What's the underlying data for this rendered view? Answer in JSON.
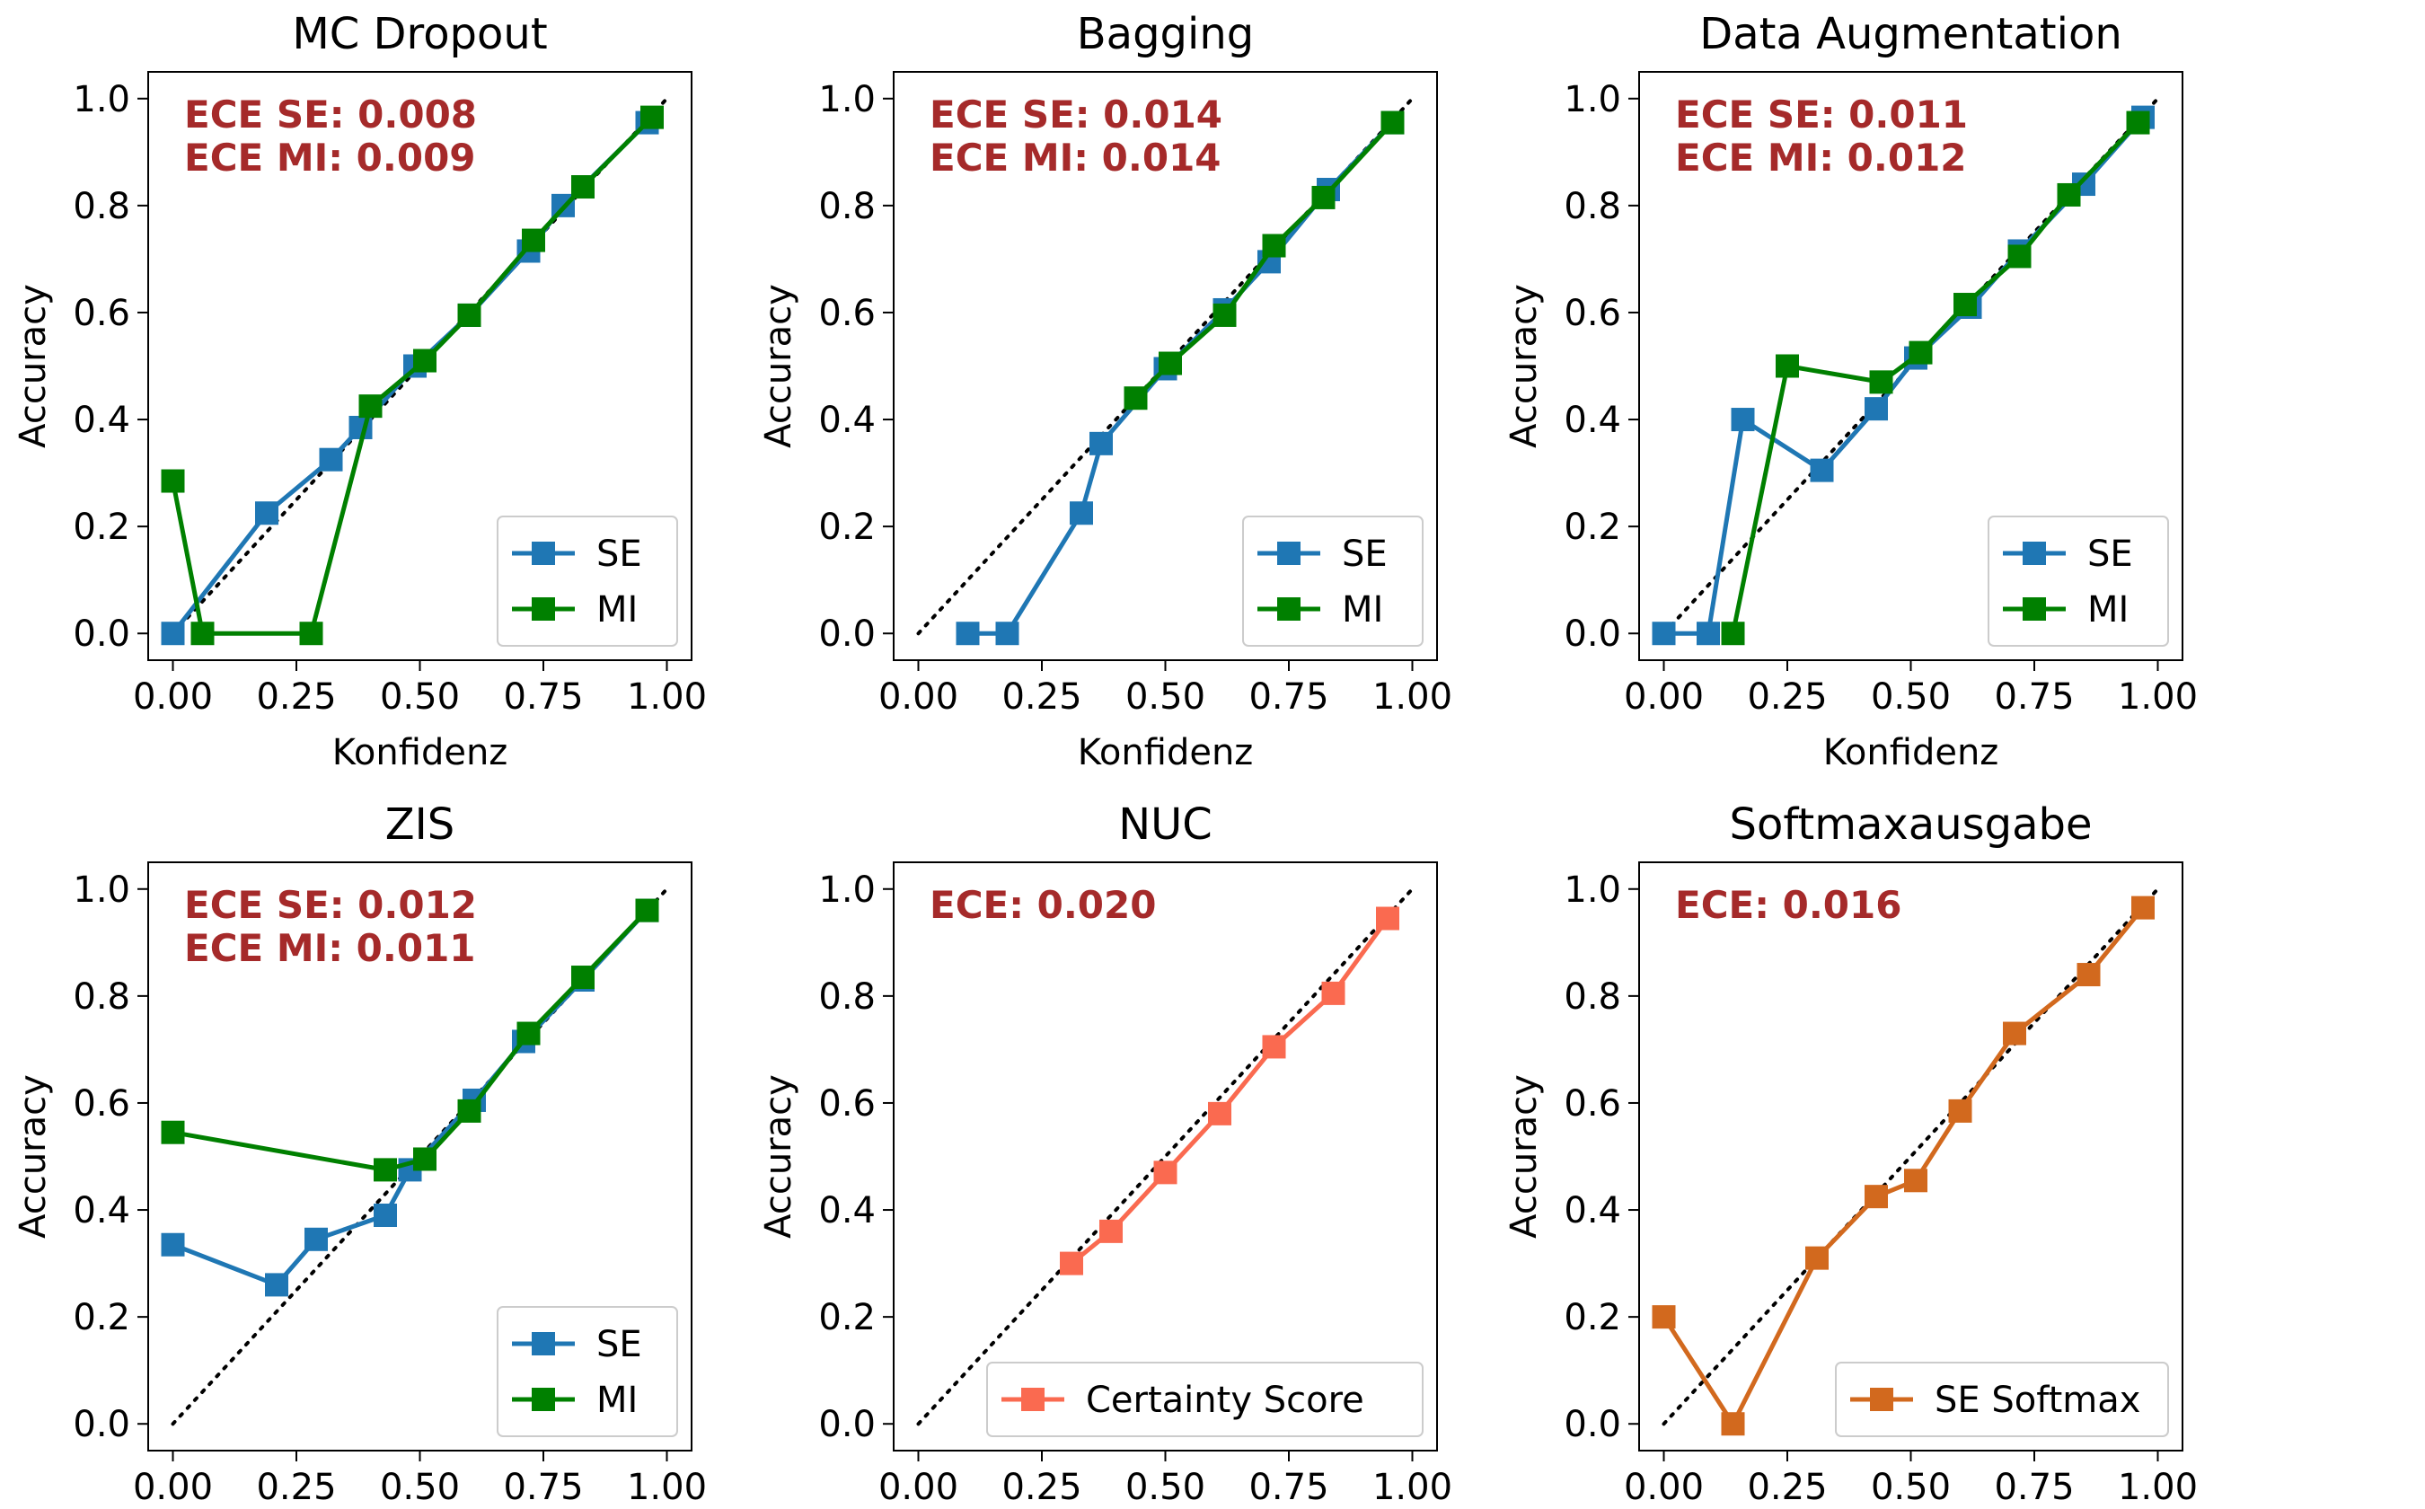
{
  "chart_data": [
    {
      "type": "line",
      "title": "MC Dropout",
      "xlabel": "Konfidenz",
      "ylabel": "Accuracy",
      "xlim": [
        -0.05,
        1.05
      ],
      "ylim": [
        -0.05,
        1.05
      ],
      "xticks": [
        "0.00",
        "0.25",
        "0.50",
        "0.75",
        "1.00"
      ],
      "yticks": [
        "0.0",
        "0.2",
        "0.4",
        "0.6",
        "0.8",
        "1.0"
      ],
      "annotations": [
        "ECE SE: 0.008",
        "ECE MI: 0.009"
      ],
      "legend_position": "lower-right",
      "diagonal": true,
      "series": [
        {
          "name": "SE",
          "color": "#1f77b4",
          "x": [
            0.0,
            0.19,
            0.32,
            0.38,
            0.49,
            0.6,
            0.72,
            0.79,
            0.96
          ],
          "y": [
            0.0,
            0.225,
            0.325,
            0.385,
            0.5,
            0.595,
            0.715,
            0.8,
            0.955
          ]
        },
        {
          "name": "MI",
          "color": "#008000",
          "x": [
            0.0,
            0.06,
            0.28,
            0.4,
            0.51,
            0.6,
            0.73,
            0.83,
            0.97
          ],
          "y": [
            0.285,
            0.0,
            0.0,
            0.425,
            0.51,
            0.595,
            0.735,
            0.835,
            0.965
          ]
        }
      ]
    },
    {
      "type": "line",
      "title": "Bagging",
      "xlabel": "Konfidenz",
      "ylabel": "Accuracy",
      "xlim": [
        -0.05,
        1.05
      ],
      "ylim": [
        -0.05,
        1.05
      ],
      "xticks": [
        "0.00",
        "0.25",
        "0.50",
        "0.75",
        "1.00"
      ],
      "yticks": [
        "0.0",
        "0.2",
        "0.4",
        "0.6",
        "0.8",
        "1.0"
      ],
      "annotations": [
        "ECE SE: 0.014",
        "ECE MI: 0.014"
      ],
      "legend_position": "lower-right",
      "diagonal": true,
      "series": [
        {
          "name": "SE",
          "color": "#1f77b4",
          "x": [
            0.1,
            0.18,
            0.33,
            0.37,
            0.5,
            0.62,
            0.71,
            0.83,
            0.96
          ],
          "y": [
            0.0,
            0.0,
            0.225,
            0.355,
            0.495,
            0.605,
            0.695,
            0.83,
            0.955
          ]
        },
        {
          "name": "MI",
          "color": "#008000",
          "x": [
            0.44,
            0.51,
            0.62,
            0.72,
            0.82,
            0.96
          ],
          "y": [
            0.44,
            0.505,
            0.595,
            0.725,
            0.815,
            0.955
          ]
        }
      ]
    },
    {
      "type": "line",
      "title": "Data Augmentation",
      "xlabel": "Konfidenz",
      "ylabel": "Accuracy",
      "xlim": [
        -0.05,
        1.05
      ],
      "ylim": [
        -0.05,
        1.05
      ],
      "xticks": [
        "0.00",
        "0.25",
        "0.50",
        "0.75",
        "1.00"
      ],
      "yticks": [
        "0.0",
        "0.2",
        "0.4",
        "0.6",
        "0.8",
        "1.0"
      ],
      "annotations": [
        "ECE SE: 0.011",
        "ECE MI: 0.012"
      ],
      "legend_position": "lower-right",
      "diagonal": true,
      "series": [
        {
          "name": "SE",
          "color": "#1f77b4",
          "x": [
            0.0,
            0.09,
            0.16,
            0.32,
            0.43,
            0.51,
            0.62,
            0.72,
            0.85,
            0.97
          ],
          "y": [
            0.0,
            0.0,
            0.4,
            0.305,
            0.42,
            0.515,
            0.61,
            0.715,
            0.84,
            0.965
          ]
        },
        {
          "name": "MI",
          "color": "#008000",
          "x": [
            0.14,
            0.25,
            0.44,
            0.52,
            0.61,
            0.72,
            0.82,
            0.96
          ],
          "y": [
            0.0,
            0.5,
            0.47,
            0.525,
            0.615,
            0.705,
            0.82,
            0.955
          ]
        }
      ]
    },
    {
      "type": "line",
      "title": "ZIS",
      "xlabel": "",
      "ylabel": "Accuracy",
      "xlim": [
        -0.05,
        1.05
      ],
      "ylim": [
        -0.05,
        1.05
      ],
      "xticks": [
        "0.00",
        "0.25",
        "0.50",
        "0.75",
        "1.00"
      ],
      "yticks": [
        "0.0",
        "0.2",
        "0.4",
        "0.6",
        "0.8",
        "1.0"
      ],
      "annotations": [
        "ECE SE: 0.012",
        "ECE MI: 0.011"
      ],
      "legend_position": "lower-right",
      "diagonal": true,
      "series": [
        {
          "name": "SE",
          "color": "#1f77b4",
          "x": [
            0.0,
            0.21,
            0.29,
            0.43,
            0.48,
            0.61,
            0.71,
            0.83,
            0.96
          ],
          "y": [
            0.335,
            0.26,
            0.345,
            0.39,
            0.475,
            0.605,
            0.715,
            0.83,
            0.96
          ]
        },
        {
          "name": "MI",
          "color": "#008000",
          "x": [
            0.0,
            0.43,
            0.51,
            0.6,
            0.72,
            0.83,
            0.96
          ],
          "y": [
            0.545,
            0.475,
            0.495,
            0.585,
            0.73,
            0.835,
            0.96
          ]
        }
      ]
    },
    {
      "type": "line",
      "title": "NUC",
      "xlabel": "",
      "ylabel": "Accuracy",
      "xlim": [
        -0.05,
        1.05
      ],
      "ylim": [
        -0.05,
        1.05
      ],
      "xticks": [
        "0.00",
        "0.25",
        "0.50",
        "0.75",
        "1.00"
      ],
      "yticks": [
        "0.0",
        "0.2",
        "0.4",
        "0.6",
        "0.8",
        "1.0"
      ],
      "annotations": [
        "ECE: 0.020"
      ],
      "legend_position": "lower-right",
      "diagonal": true,
      "series": [
        {
          "name": "Certainty Score",
          "color": "#fa6a50",
          "x": [
            0.31,
            0.39,
            0.5,
            0.61,
            0.72,
            0.84,
            0.95
          ],
          "y": [
            0.3,
            0.36,
            0.47,
            0.58,
            0.705,
            0.805,
            0.945
          ]
        }
      ]
    },
    {
      "type": "line",
      "title": "Softmaxausgabe",
      "xlabel": "",
      "ylabel": "Accuracy",
      "xlim": [
        -0.05,
        1.05
      ],
      "ylim": [
        -0.05,
        1.05
      ],
      "xticks": [
        "0.00",
        "0.25",
        "0.50",
        "0.75",
        "1.00"
      ],
      "yticks": [
        "0.0",
        "0.2",
        "0.4",
        "0.6",
        "0.8",
        "1.0"
      ],
      "annotations": [
        "ECE: 0.016"
      ],
      "legend_position": "lower-right",
      "diagonal": true,
      "series": [
        {
          "name": "SE Softmax",
          "color": "#d2691e",
          "x": [
            0.0,
            0.14,
            0.31,
            0.43,
            0.51,
            0.6,
            0.71,
            0.86,
            0.97
          ],
          "y": [
            0.2,
            0.0,
            0.31,
            0.425,
            0.455,
            0.585,
            0.73,
            0.84,
            0.965
          ]
        }
      ]
    }
  ],
  "colors": {
    "annotation": "#a52a2a",
    "diagonal": "#000000"
  }
}
